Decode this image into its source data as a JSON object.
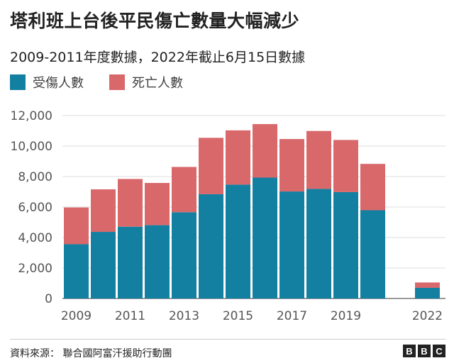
{
  "title": "塔利班上台後平民傷亡數量大幅減少",
  "subtitle": "2009-2011年度數據，2022年截止6月15日數據",
  "legend": [
    {
      "label": "受傷人數",
      "color": "#1380a1"
    },
    {
      "label": "死亡人數",
      "color": "#d9686b"
    }
  ],
  "chart_data": {
    "type": "bar",
    "stacked": true,
    "categories": [
      "2009",
      "2010",
      "2011",
      "2012",
      "2013",
      "2014",
      "2015",
      "2016",
      "2017",
      "2018",
      "2019",
      "2020",
      "2022"
    ],
    "series": [
      {
        "name": "受傷人數",
        "color": "#1380a1",
        "values": [
          3560,
          4370,
          4710,
          4810,
          5660,
          6840,
          7470,
          7930,
          7020,
          7190,
          6980,
          5790,
          700
        ]
      },
      {
        "name": "死亡人數",
        "color": "#d9686b",
        "values": [
          2410,
          2790,
          3130,
          2770,
          2970,
          3700,
          3560,
          3510,
          3440,
          3800,
          3420,
          3040,
          350
        ]
      }
    ],
    "x_tick_labels": [
      "2009",
      "2011",
      "2013",
      "2015",
      "2017",
      "2019",
      "2022"
    ],
    "y_ticks": [
      0,
      2000,
      4000,
      6000,
      8000,
      10000,
      12000
    ],
    "y_tick_labels": [
      "0",
      "2,000",
      "4,000",
      "6,000",
      "8,000",
      "10,000",
      "12,000"
    ],
    "ylim": [
      0,
      12000
    ],
    "grid": true,
    "legend_position": "top-left"
  },
  "source": "資料來源： 聯合國阿富汗援助行動團",
  "logo": [
    "B",
    "B",
    "C"
  ]
}
